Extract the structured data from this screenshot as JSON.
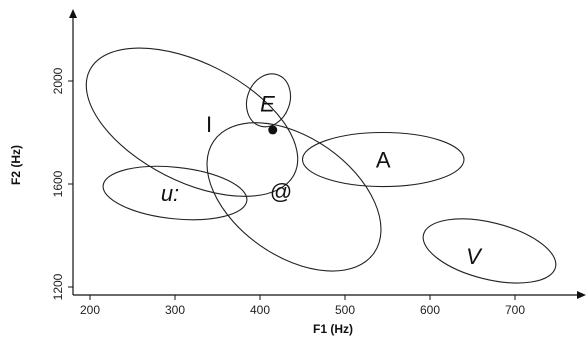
{
  "chart_data": {
    "type": "scatter",
    "xlabel": "F1 (Hz)",
    "ylabel": "F2 (Hz)",
    "xlim": [
      180,
      780
    ],
    "ylim": [
      1180,
      2210
    ],
    "xticks": [
      "200",
      "300",
      "400",
      "500",
      "600",
      "700"
    ],
    "yticks": [
      "1200",
      "1600",
      "2000"
    ],
    "grid": false,
    "legend": "none",
    "vowel_ellipses": [
      {
        "label": "I",
        "f1": 320,
        "f2": 1840,
        "f1_radius": 135,
        "f2_radius": 230
      },
      {
        "label": "E",
        "f1": 410,
        "f2": 1925,
        "f1_radius": 25,
        "f2_radius": 105
      },
      {
        "label": "A",
        "f1": 545,
        "f2": 1695,
        "f1_radius": 95,
        "f2_radius": 105
      },
      {
        "label": "u:",
        "f1": 300,
        "f2": 1565,
        "f1_radius": 85,
        "f2_radius": 100
      },
      {
        "label": "@",
        "f1": 440,
        "f2": 1550,
        "f1_radius": 115,
        "f2_radius": 230
      },
      {
        "label": "V",
        "f1": 670,
        "f2": 1340,
        "f1_radius": 80,
        "f2_radius": 110
      }
    ],
    "point": {
      "f1": 415,
      "f2": 1810
    }
  }
}
